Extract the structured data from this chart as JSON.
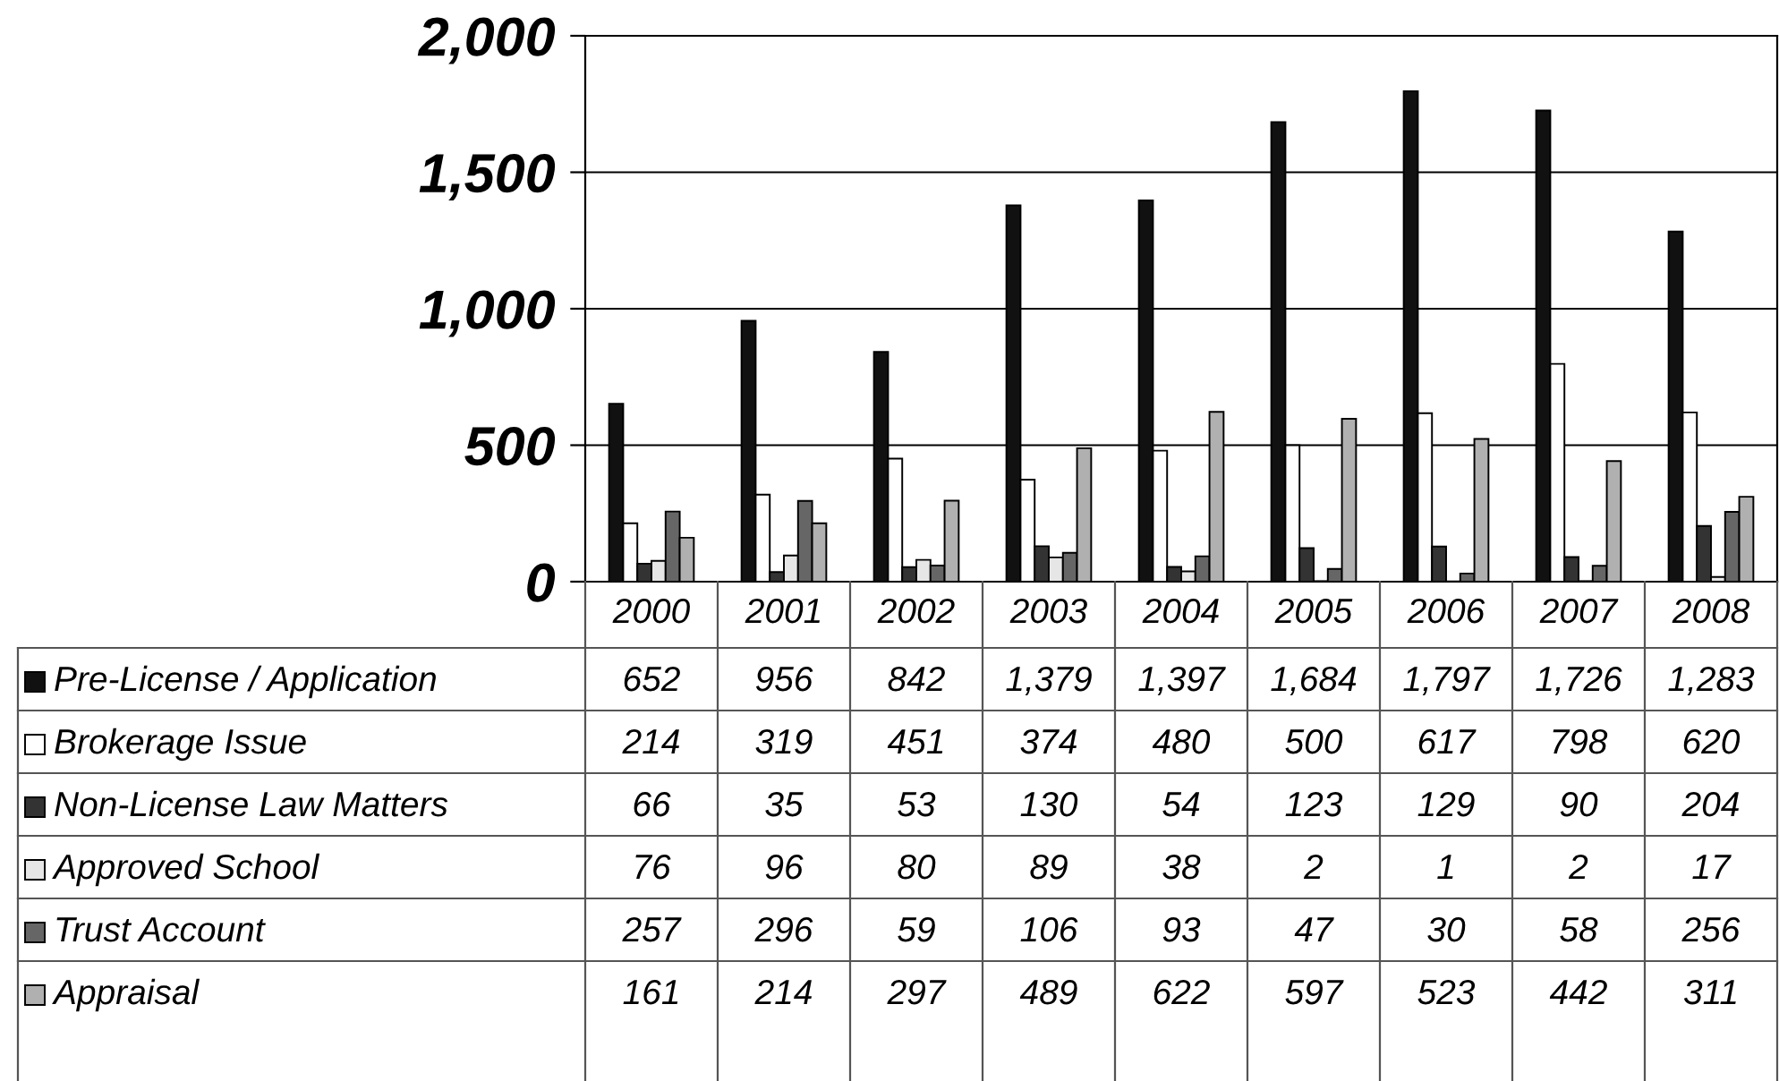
{
  "chart_data": {
    "type": "bar",
    "categories": [
      "2000",
      "2001",
      "2002",
      "2003",
      "2004",
      "2005",
      "2006",
      "2007",
      "2008"
    ],
    "series": [
      {
        "name": "Pre-License / Application",
        "color": "#111111",
        "values": [
          652,
          956,
          842,
          1379,
          1397,
          1684,
          1797,
          1726,
          1283
        ],
        "value_labels": [
          "652",
          "956",
          "842",
          "1,379",
          "1,397",
          "1,684",
          "1,797",
          "1,726",
          "1,283"
        ]
      },
      {
        "name": "Brokerage Issue",
        "color": "#ffffff",
        "values": [
          214,
          319,
          451,
          374,
          480,
          500,
          617,
          798,
          620
        ],
        "value_labels": [
          "214",
          "319",
          "451",
          "374",
          "480",
          "500",
          "617",
          "798",
          "620"
        ]
      },
      {
        "name": "Non-License Law Matters",
        "color": "#333333",
        "values": [
          66,
          35,
          53,
          130,
          54,
          123,
          129,
          90,
          204
        ],
        "value_labels": [
          "66",
          "35",
          "53",
          "130",
          "54",
          "123",
          "129",
          "90",
          "204"
        ]
      },
      {
        "name": "Approved School",
        "color": "#e6e6e6",
        "values": [
          76,
          96,
          80,
          89,
          38,
          2,
          1,
          2,
          17
        ],
        "value_labels": [
          "76",
          "96",
          "80",
          "89",
          "38",
          "2",
          "1",
          "2",
          "17"
        ]
      },
      {
        "name": "Trust Account",
        "color": "#666666",
        "values": [
          257,
          296,
          59,
          106,
          93,
          47,
          30,
          58,
          256
        ],
        "value_labels": [
          "257",
          "296",
          "59",
          "106",
          "93",
          "47",
          "30",
          "58",
          "256"
        ]
      },
      {
        "name": "Appraisal",
        "color": "#b0b0b0",
        "values": [
          161,
          214,
          297,
          489,
          622,
          597,
          523,
          442,
          311
        ],
        "value_labels": [
          "161",
          "214",
          "297",
          "489",
          "622",
          "597",
          "523",
          "442",
          "311"
        ]
      }
    ],
    "ylim": [
      0,
      2000
    ],
    "yticks": [
      0,
      500,
      {
        "value": 1000,
        "label": "1,000"
      },
      {
        "value": 1500,
        "label": "1,500"
      },
      {
        "value": 2000,
        "label": "2,000"
      }
    ],
    "grid": "y",
    "legend": "bottom"
  }
}
